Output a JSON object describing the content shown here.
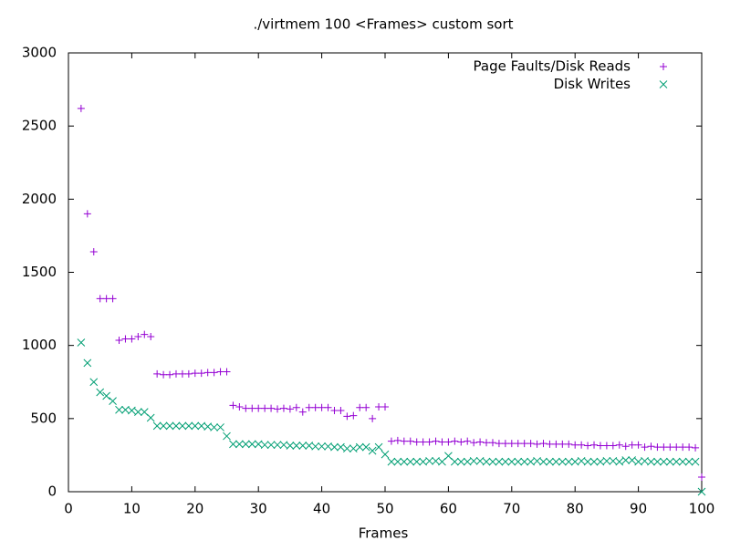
{
  "chart_data": {
    "type": "scatter",
    "title": "./virtmem 100 <Frames> custom sort",
    "x_label": "Frames",
    "x": [
      2,
      3,
      4,
      5,
      6,
      7,
      8,
      9,
      10,
      11,
      12,
      13,
      14,
      15,
      16,
      17,
      18,
      19,
      20,
      21,
      22,
      23,
      24,
      25,
      26,
      27,
      28,
      29,
      30,
      31,
      32,
      33,
      34,
      35,
      36,
      37,
      38,
      39,
      40,
      41,
      42,
      43,
      44,
      45,
      46,
      47,
      48,
      49,
      50,
      51,
      52,
      53,
      54,
      55,
      56,
      57,
      58,
      59,
      60,
      61,
      62,
      63,
      64,
      65,
      66,
      67,
      68,
      69,
      70,
      71,
      72,
      73,
      74,
      75,
      76,
      77,
      78,
      79,
      80,
      81,
      82,
      83,
      84,
      85,
      86,
      87,
      88,
      89,
      90,
      91,
      92,
      93,
      94,
      95,
      96,
      97,
      98,
      99,
      100
    ],
    "series": [
      {
        "name": "Page Faults/Disk Reads",
        "color": "#9400d3",
        "marker": "+",
        "values": [
          2620,
          1900,
          1640,
          1320,
          1320,
          1320,
          1035,
          1045,
          1045,
          1060,
          1075,
          1060,
          805,
          800,
          800,
          805,
          805,
          805,
          810,
          810,
          815,
          815,
          820,
          820,
          590,
          580,
          570,
          570,
          570,
          570,
          570,
          565,
          570,
          565,
          575,
          545,
          575,
          575,
          575,
          575,
          555,
          555,
          515,
          520,
          575,
          575,
          500,
          580,
          580,
          345,
          350,
          345,
          345,
          340,
          340,
          340,
          345,
          340,
          340,
          345,
          340,
          345,
          335,
          340,
          335,
          335,
          330,
          330,
          330,
          330,
          330,
          330,
          325,
          330,
          325,
          325,
          325,
          325,
          320,
          320,
          315,
          320,
          315,
          315,
          315,
          320,
          310,
          320,
          320,
          305,
          310,
          305,
          305,
          305,
          305,
          305,
          305,
          300,
          100
        ]
      },
      {
        "name": "Disk Writes",
        "color": "#009e73",
        "marker": "x",
        "values": [
          1020,
          880,
          750,
          680,
          655,
          620,
          560,
          560,
          555,
          545,
          545,
          505,
          450,
          450,
          450,
          450,
          450,
          450,
          450,
          450,
          445,
          440,
          440,
          380,
          325,
          325,
          325,
          325,
          325,
          320,
          320,
          320,
          320,
          315,
          315,
          315,
          315,
          310,
          310,
          310,
          305,
          305,
          295,
          295,
          305,
          305,
          280,
          305,
          255,
          205,
          205,
          205,
          205,
          205,
          205,
          210,
          210,
          205,
          245,
          205,
          205,
          205,
          210,
          210,
          205,
          205,
          205,
          205,
          205,
          205,
          205,
          205,
          210,
          205,
          205,
          205,
          205,
          205,
          205,
          210,
          205,
          205,
          205,
          210,
          210,
          205,
          215,
          215,
          205,
          210,
          205,
          205,
          205,
          205,
          205,
          205,
          205,
          205,
          0
        ]
      }
    ],
    "xlim": [
      0,
      100
    ],
    "xticks": [
      0,
      10,
      20,
      30,
      40,
      50,
      60,
      70,
      80,
      90,
      100
    ],
    "ylim": [
      0,
      3000
    ],
    "yticks": [
      0,
      500,
      1000,
      1500,
      2000,
      2500,
      3000
    ],
    "legend": "top-right"
  }
}
